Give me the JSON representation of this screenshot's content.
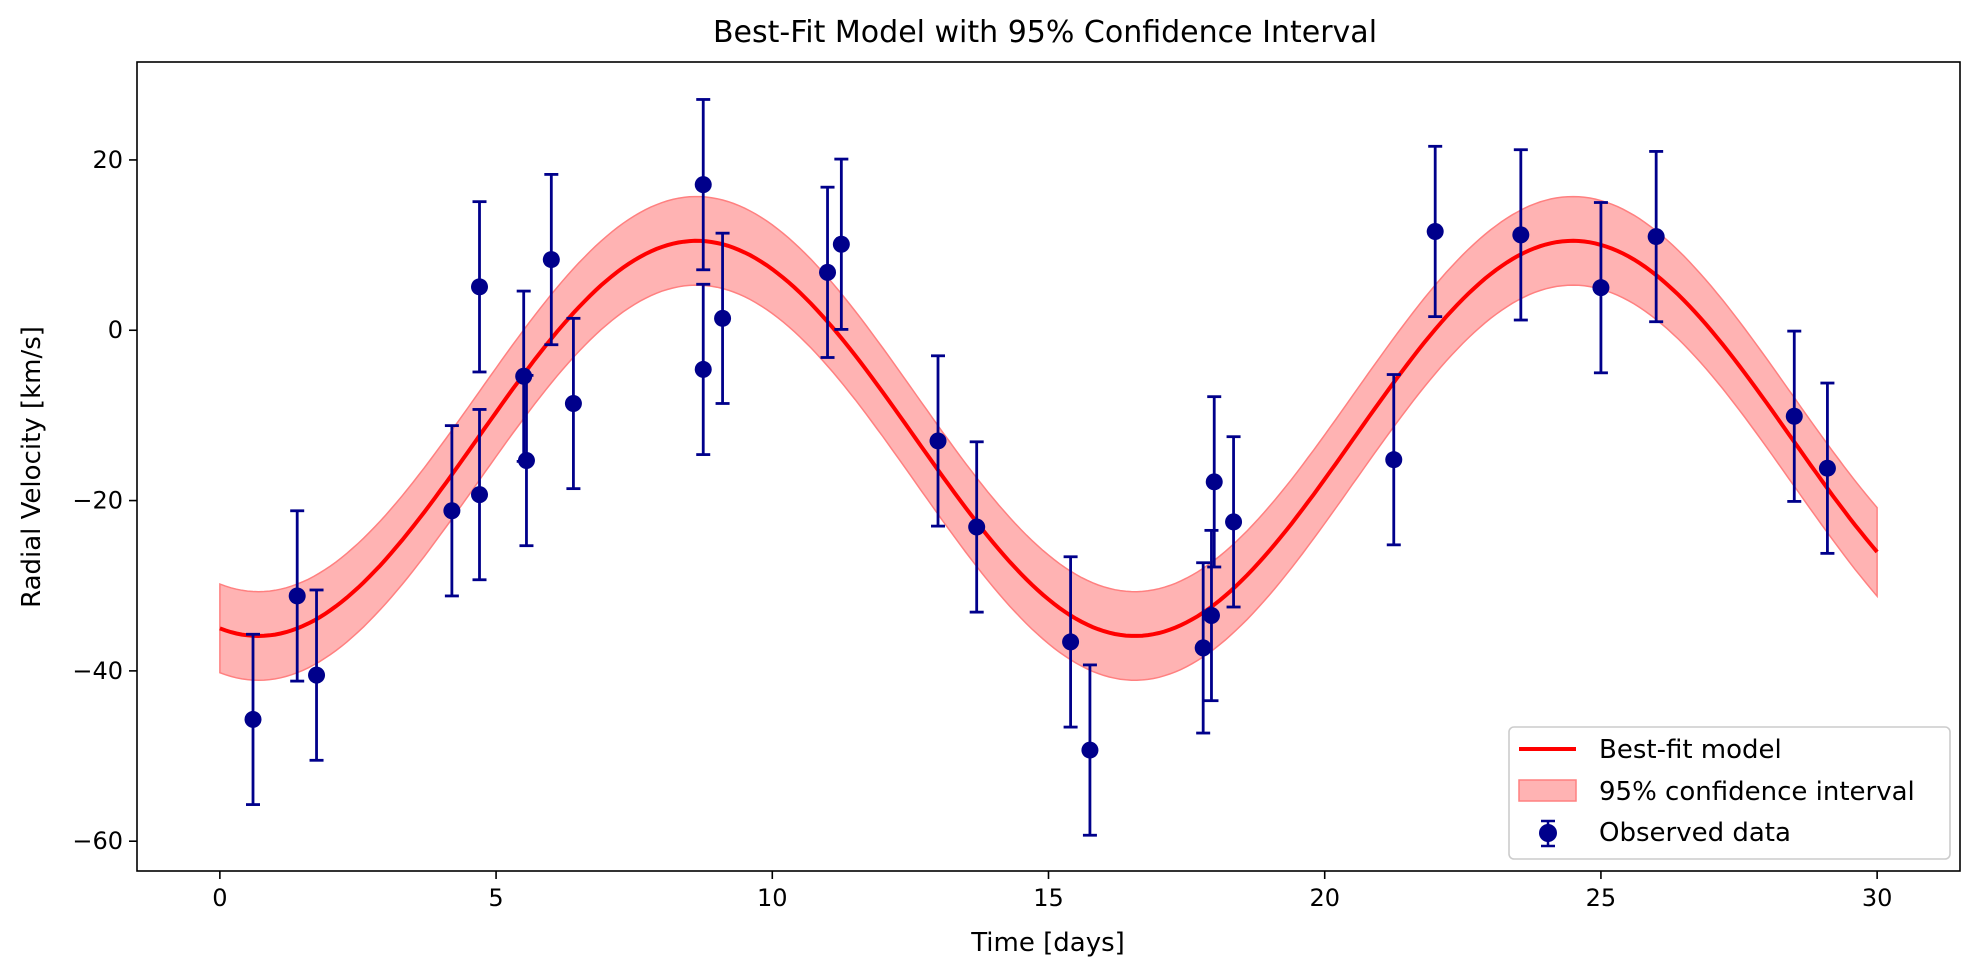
{
  "chart_data": {
    "type": "line",
    "title": "Best-Fit Model with 95% Confidence Interval",
    "xlabel": "Time [days]",
    "ylabel": "Radial Velocity [km/s]",
    "xlim": [
      -1.5,
      31.5
    ],
    "ylim": [
      -63.5,
      31.5
    ],
    "xticks": [
      0,
      5,
      10,
      15,
      20,
      25,
      30
    ],
    "xtick_labels": [
      "0",
      "5",
      "10",
      "15",
      "20",
      "25",
      "30"
    ],
    "yticks": [
      -60,
      -40,
      -20,
      0,
      20
    ],
    "ytick_labels": [
      "−60",
      "−40",
      "−20",
      "0",
      "20"
    ],
    "grid": false,
    "legend_position": "lower-right",
    "model": {
      "name": "Best-fit model",
      "amplitude": 23.2,
      "offset": -12.7,
      "period": 15.86,
      "peak_time": 8.63,
      "x_range": [
        0,
        30
      ],
      "color": "#ff0000"
    },
    "confidence_interval": {
      "name": "95% confidence interval",
      "half_width": 5.2,
      "color": "#ffb3b3"
    },
    "observed": {
      "name": "Observed data",
      "color": "#00008b",
      "error": 10,
      "points": [
        {
          "x": 0.6,
          "y": -45.7
        },
        {
          "x": 1.4,
          "y": -31.2
        },
        {
          "x": 1.75,
          "y": -40.5
        },
        {
          "x": 4.2,
          "y": -21.2
        },
        {
          "x": 4.7,
          "y": 5.1
        },
        {
          "x": 4.7,
          "y": -19.3
        },
        {
          "x": 5.5,
          "y": -5.4
        },
        {
          "x": 5.55,
          "y": -15.3
        },
        {
          "x": 6.0,
          "y": 8.3
        },
        {
          "x": 6.4,
          "y": -8.6
        },
        {
          "x": 8.75,
          "y": 17.1
        },
        {
          "x": 8.75,
          "y": -4.6
        },
        {
          "x": 9.1,
          "y": 1.4
        },
        {
          "x": 11.0,
          "y": 6.8
        },
        {
          "x": 11.25,
          "y": 10.1
        },
        {
          "x": 13.0,
          "y": -13.0
        },
        {
          "x": 13.7,
          "y": -23.1
        },
        {
          "x": 15.4,
          "y": -36.6
        },
        {
          "x": 15.75,
          "y": -49.3
        },
        {
          "x": 17.8,
          "y": -37.3
        },
        {
          "x": 17.95,
          "y": -33.5
        },
        {
          "x": 18.0,
          "y": -17.8
        },
        {
          "x": 18.35,
          "y": -22.5
        },
        {
          "x": 21.25,
          "y": -15.2
        },
        {
          "x": 22.0,
          "y": 11.6
        },
        {
          "x": 23.55,
          "y": 11.2
        },
        {
          "x": 25.0,
          "y": 5.0
        },
        {
          "x": 26.0,
          "y": 11.0
        },
        {
          "x": 28.5,
          "y": -10.1
        },
        {
          "x": 29.1,
          "y": -16.2
        }
      ]
    }
  }
}
